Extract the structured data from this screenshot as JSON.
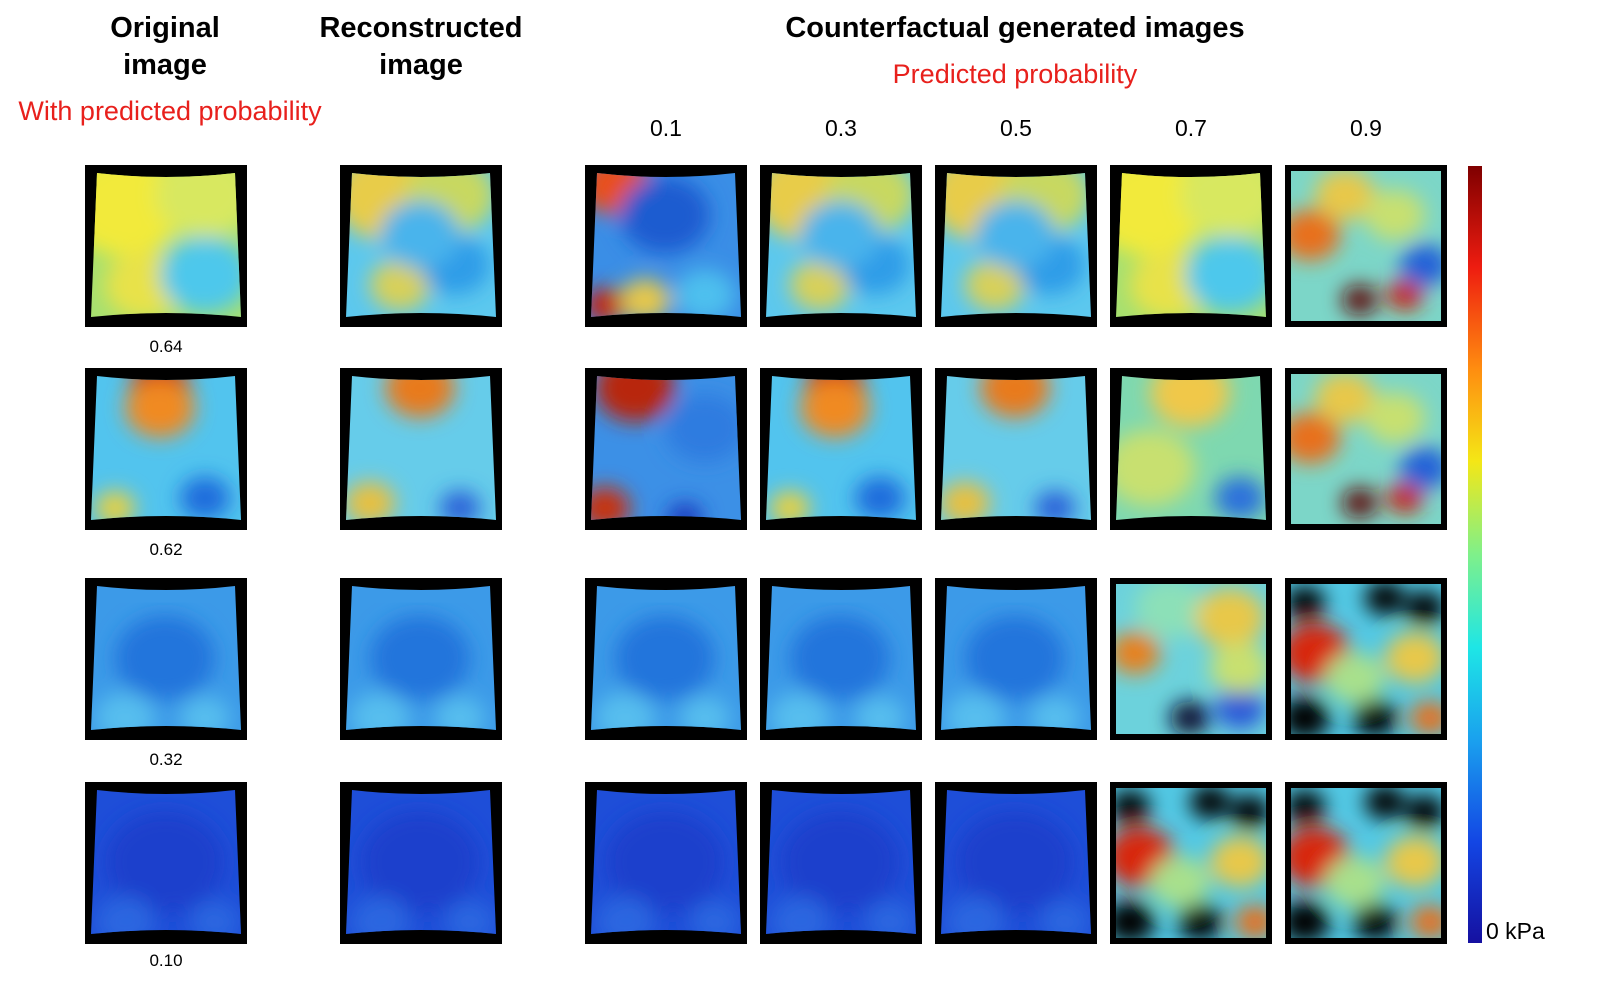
{
  "headers": {
    "original": [
      "Original",
      "image"
    ],
    "reconstructed": [
      "Reconstructed",
      "image"
    ],
    "counterfactual": "Counterfactual generated images"
  },
  "subtitles": {
    "original": "With predicted probability",
    "counterfactual": "Predicted probability"
  },
  "counterfactual_probabilities": [
    "0.1",
    "0.3",
    "0.5",
    "0.7",
    "0.9"
  ],
  "rows": [
    {
      "original_probability": "0.64"
    },
    {
      "original_probability": "0.62"
    },
    {
      "original_probability": "0.32"
    },
    {
      "original_probability": "0.10"
    }
  ],
  "colorbar": {
    "label": "0 kPa",
    "colors": [
      "#7f0000",
      "#ee1c10",
      "#ff8c10",
      "#f4e716",
      "#7ff08a",
      "#1ee6e6",
      "#1aa0ee",
      "#1346e4",
      "#1510a0"
    ]
  },
  "tile_styles": [
    [
      "yellow-green",
      "light-blue",
      "blue-red-corners",
      "light-blue",
      "light-blue",
      "yellow-green",
      "blotchy-orange-red"
    ],
    [
      "cyan-red-top",
      "cyan-orange-top",
      "blue-red-top",
      "cyan-red-top",
      "cyan-orange-top",
      "yellow-green-top",
      "blotchy-orange-red"
    ],
    [
      "mid-blue",
      "mid-blue",
      "mid-blue",
      "mid-blue",
      "mid-blue",
      "cyan-yellow-blotchy",
      "blotchy-red-black"
    ],
    [
      "dark-blue",
      "dark-blue",
      "dark-blue",
      "dark-blue",
      "dark-blue",
      "blotchy-red-black",
      "blotchy-red-black"
    ]
  ]
}
